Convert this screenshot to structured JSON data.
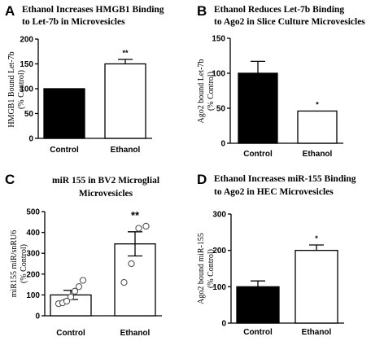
{
  "chart_data": [
    {
      "panel": "A",
      "type": "bar",
      "title": [
        "Ethanol  Increases HMGB1 Binding",
        "to Let-7b in Microvesicles"
      ],
      "ylabel": [
        "HMGB1 Bound Let-7b",
        "(% Control)"
      ],
      "categories": [
        "Control",
        "Ethanol"
      ],
      "values": [
        100,
        150
      ],
      "errors": [
        0,
        9
      ],
      "fills": [
        "#000000",
        "#ffffff"
      ],
      "significance": [
        "",
        "**"
      ],
      "ylim": [
        0,
        200
      ],
      "yticks": [
        "0",
        "50",
        "100",
        "150",
        "200"
      ]
    },
    {
      "panel": "B",
      "type": "bar",
      "title": [
        "Ethanol Reduces Let-7b Binding",
        "to Ago2 in Slice Culture Microvesicles"
      ],
      "ylabel": [
        "Ago2 bound Let-7b",
        "(% Control)"
      ],
      "categories": [
        "Control",
        "Ethanol"
      ],
      "values": [
        100,
        46
      ],
      "errors": [
        17,
        0
      ],
      "fills": [
        "#000000",
        "#ffffff"
      ],
      "significance": [
        "",
        "*"
      ],
      "ylim": [
        0,
        150
      ],
      "yticks": [
        "0",
        "50",
        "100",
        "150"
      ]
    },
    {
      "panel": "C",
      "type": "bar",
      "title": [
        "miR 155 in BV2 Microglial",
        "Microvesicles"
      ],
      "ylabel": [
        "miR155 miR/snRU6",
        "(% Control)"
      ],
      "categories": [
        "Control",
        "Ethanol"
      ],
      "values": [
        100,
        345
      ],
      "errors": [
        22,
        58
      ],
      "fills": [
        "#ffffff",
        "#ffffff"
      ],
      "significance": [
        "",
        "**"
      ],
      "points": [
        [
          58,
          62,
          70,
          90,
          118,
          140,
          170
        ],
        [
          160,
          250,
          420,
          430
        ]
      ],
      "ylim": [
        0,
        500
      ],
      "yticks": [
        "0",
        "100",
        "200",
        "300",
        "400",
        "500"
      ]
    },
    {
      "panel": "D",
      "type": "bar",
      "title": [
        "Ethanol Increases miR-155 Binding",
        "to Ago2 in HEC Microvesicles"
      ],
      "ylabel": [
        "Ago2 bound miR-155",
        "(% Control)"
      ],
      "categories": [
        "Control",
        "Ethanol"
      ],
      "values": [
        100,
        200
      ],
      "errors": [
        16,
        15
      ],
      "fills": [
        "#000000",
        "#ffffff"
      ],
      "significance": [
        "",
        "*"
      ],
      "ylim": [
        0,
        300
      ],
      "yticks": [
        "0",
        "100",
        "200",
        "300"
      ]
    }
  ]
}
